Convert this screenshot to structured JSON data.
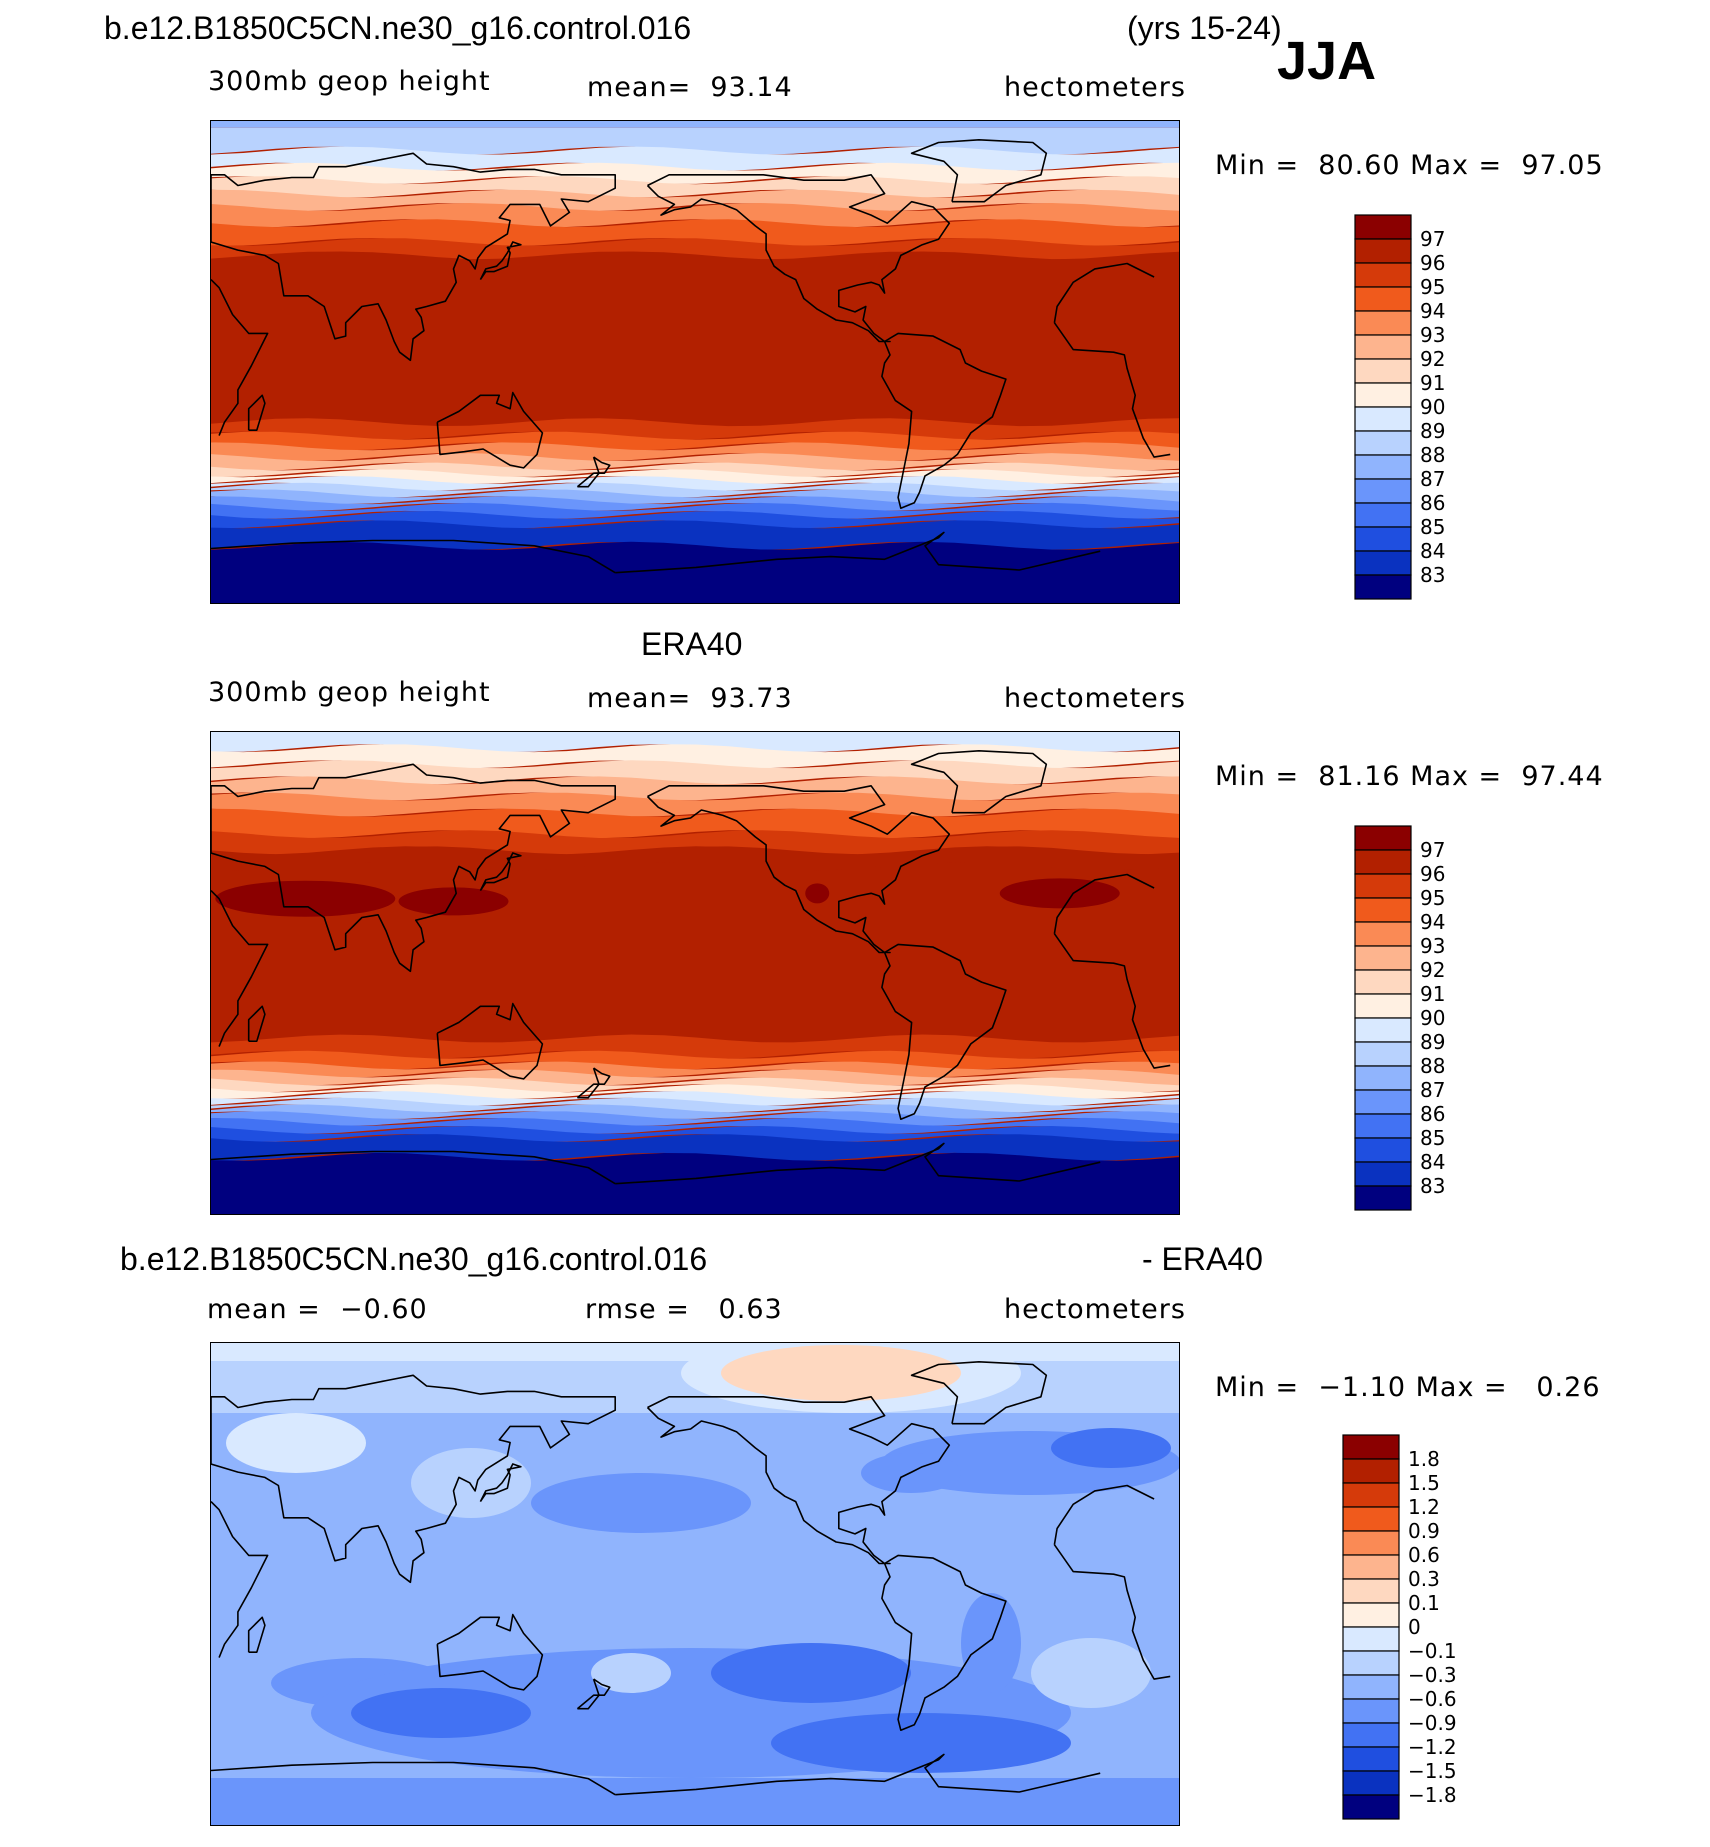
{
  "header": {
    "case_name": "b.e12.B1850C5CN.ne30_g16.control.016",
    "years": "(yrs 15-24)",
    "season": "JJA"
  },
  "panels": [
    {
      "id": "model",
      "title": "",
      "variable": "300mb geop height",
      "stat": "mean=  93.14",
      "units": "hectometers",
      "minmax": "Min =  80.60 Max =  97.05"
    },
    {
      "id": "obs",
      "title": "ERA40",
      "variable": "300mb geop height",
      "stat": "mean=  93.73",
      "units": "hectometers",
      "minmax": "Min =  81.16 Max =  97.44"
    },
    {
      "id": "diff",
      "title_left": "b.e12.B1850C5CN.ne30_g16.control.016",
      "title_right": "- ERA40",
      "stat_left": "mean =  −0.60",
      "stat_mid": "rmse =   0.63",
      "units": "hectometers",
      "minmax": "Min =  −1.10 Max =   0.26"
    }
  ],
  "colorbars": {
    "height": {
      "labels": [
        "97",
        "96",
        "95",
        "94",
        "93",
        "92",
        "91",
        "90",
        "89",
        "88",
        "87",
        "86",
        "85",
        "84",
        "83"
      ],
      "colors": [
        "#8b0000",
        "#b22000",
        "#d53a0a",
        "#f05a1c",
        "#fa8a55",
        "#fdb48e",
        "#fed8c0",
        "#fff0e2",
        "#d9e9ff",
        "#b8d2fe",
        "#90b4fd",
        "#6a95fb",
        "#4272f3",
        "#1f4fe0",
        "#0a32c0",
        "#00007f"
      ]
    },
    "diff": {
      "labels": [
        "1.8",
        "1.5",
        "1.2",
        "0.9",
        "0.6",
        "0.3",
        "0.1",
        "0",
        "−0.1",
        "−0.3",
        "−0.6",
        "−0.9",
        "−1.2",
        "−1.5",
        "−1.8"
      ],
      "colors": [
        "#8b0000",
        "#b22000",
        "#d53a0a",
        "#f05a1c",
        "#fa8a55",
        "#fdb48e",
        "#fed8c0",
        "#fff0e2",
        "#d9e9ff",
        "#b8d2fe",
        "#90b4fd",
        "#6a95fb",
        "#4272f3",
        "#1f4fe0",
        "#0a32c0",
        "#00007f"
      ]
    }
  }
}
